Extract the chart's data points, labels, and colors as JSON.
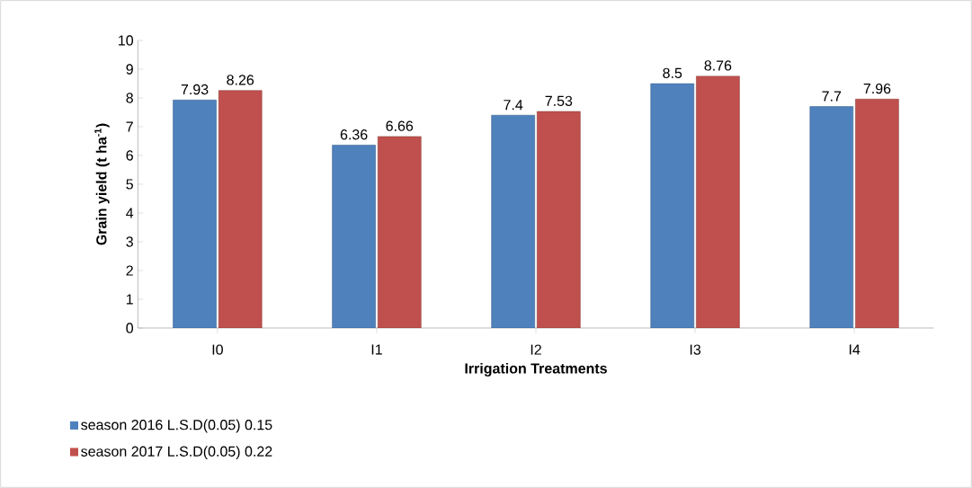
{
  "chart_data": {
    "type": "bar",
    "xlabel": "Irrigation Treatments",
    "ylabel": "Grain yield (t ha$^{-1}$)",
    "categories": [
      "I0",
      "I1",
      "I2",
      "I3",
      "I4"
    ],
    "series": [
      {
        "name": "season 2016 L.S.D(0.05) 0.15",
        "color": "#4f81bd",
        "values": [
          7.93,
          6.36,
          7.4,
          8.5,
          7.7
        ]
      },
      {
        "name": "season 2017 L.S.D(0.05) 0.22",
        "color": "#c0504d",
        "values": [
          8.26,
          6.66,
          7.53,
          8.76,
          7.96
        ]
      }
    ],
    "ylim": [
      0,
      10
    ],
    "yticks": [
      0,
      1,
      2,
      3,
      4,
      5,
      6,
      7,
      8,
      9,
      10
    ],
    "data_labels": true,
    "legend": "bottom",
    "grid": false
  }
}
